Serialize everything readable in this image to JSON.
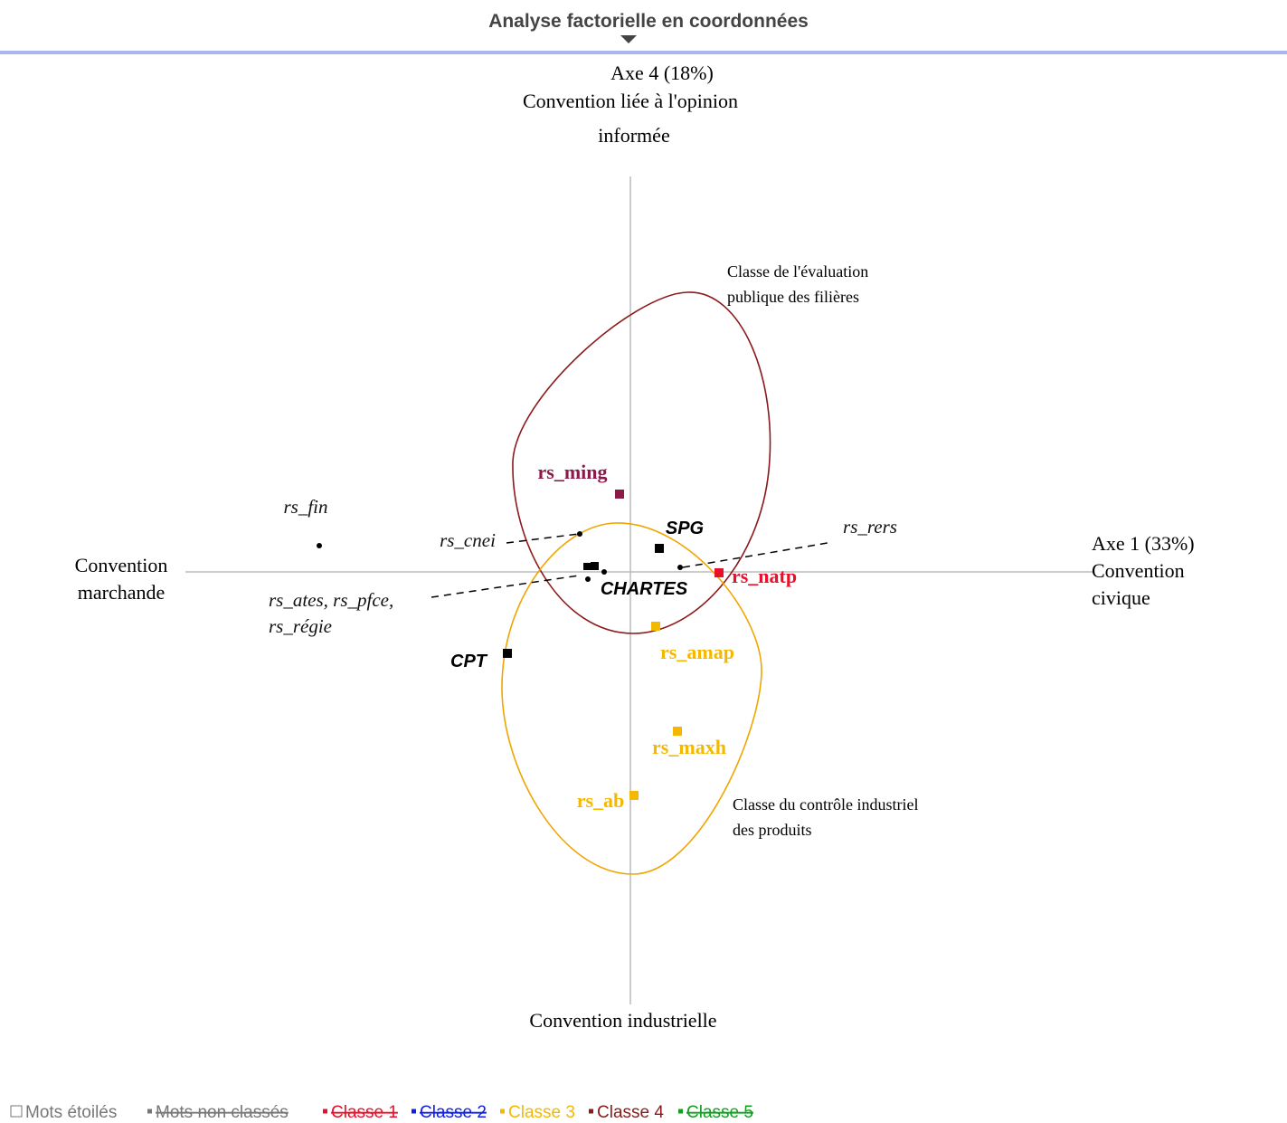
{
  "header": {
    "title": "Analyse factorielle en coordonnées"
  },
  "axes": {
    "top": [
      "Axe 4 (18%)",
      "Convention liée à l'opinion",
      "informée"
    ],
    "left": [
      "Convention",
      "marchande"
    ],
    "right": [
      "Axe 1 (33%)",
      "Convention",
      "civique"
    ],
    "bottom": "Convention industrielle"
  },
  "classes": [
    {
      "lines": [
        "Classe de l'évaluation",
        "publique des filières"
      ]
    },
    {
      "lines": [
        "Classe du contrôle industriel",
        "des produits"
      ]
    }
  ],
  "points": [
    "rs_fin",
    "rs_cnei",
    "rs_ates, rs_pfce,",
    "rs_régie",
    "SPG",
    "CHARTES",
    "rs_rers",
    "rs_natp",
    "rs_ming",
    "rs_amap",
    "rs_maxh",
    "rs_ab",
    "CPT"
  ],
  "legend": [
    "Mots étoilés",
    "Mots non classés",
    "Classe 1",
    "Classe 2",
    "Classe 3",
    "Classe 4",
    "Classe 5"
  ]
}
